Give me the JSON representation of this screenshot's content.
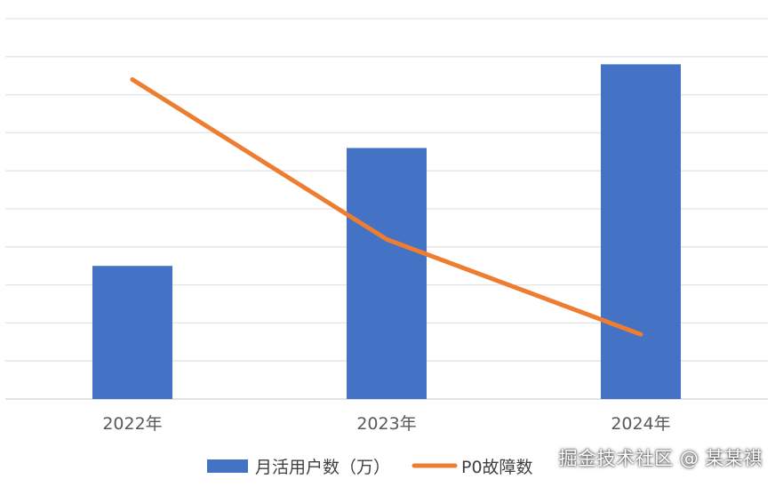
{
  "chart_data": {
    "type": "bar+line",
    "categories": [
      "2022年",
      "2023年",
      "2024年"
    ],
    "series": [
      {
        "name": "月活用户数（万）",
        "type": "bar",
        "color": "#4472C4",
        "values": [
          35,
          66,
          88
        ]
      },
      {
        "name": "P0故障数",
        "type": "line",
        "color": "#ED7D31",
        "values": [
          84,
          42,
          17
        ]
      }
    ],
    "ylim": [
      0,
      100
    ],
    "grid": true,
    "legend_position": "bottom"
  },
  "watermark": "掘金技术社区 @ 某某祺"
}
